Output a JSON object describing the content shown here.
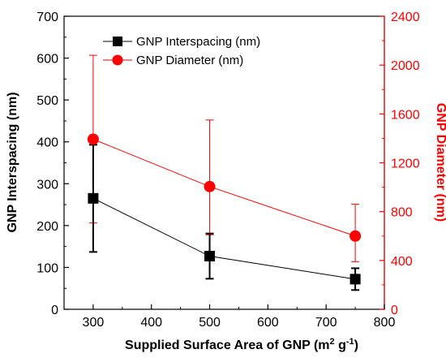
{
  "chart_data": {
    "type": "line",
    "x": [
      300,
      500,
      750
    ],
    "xlabel_main": "Supplied Surface Area of GNP (m",
    "xlabel_sup1": "2",
    "xlabel_g": " g",
    "xlabel_sup2": "-1",
    "xlabel_close": ")",
    "xlim": [
      250,
      800
    ],
    "xticks": [
      "300",
      "400",
      "500",
      "600",
      "700",
      "800"
    ],
    "ylabel_left": "GNP Interspacing (nm)",
    "ylim_left": [
      0,
      700
    ],
    "yticks_left": [
      "0",
      "100",
      "200",
      "300",
      "400",
      "500",
      "600",
      "700"
    ],
    "ylabel_right": "GNP Diameter (nm)",
    "ylim_right": [
      0,
      2400
    ],
    "yticks_right": [
      "0",
      "400",
      "800",
      "1200",
      "1600",
      "2000",
      "2400"
    ],
    "legend_position": "top-left",
    "series": [
      {
        "name": "GNP Interspacing (nm)",
        "axis": "left",
        "marker": "square",
        "color": "#000000",
        "values": [
          265,
          127,
          72
        ],
        "err_low": [
          137,
          73,
          46
        ],
        "err_high": [
          393,
          181,
          98
        ]
      },
      {
        "name": "GNP Diameter (nm)",
        "axis": "right",
        "marker": "circle",
        "color": "#ff0000",
        "values": [
          1393,
          1005,
          600
        ],
        "err_low": [
          707,
          610,
          390
        ],
        "err_high": [
          2080,
          1550,
          860
        ]
      }
    ]
  }
}
